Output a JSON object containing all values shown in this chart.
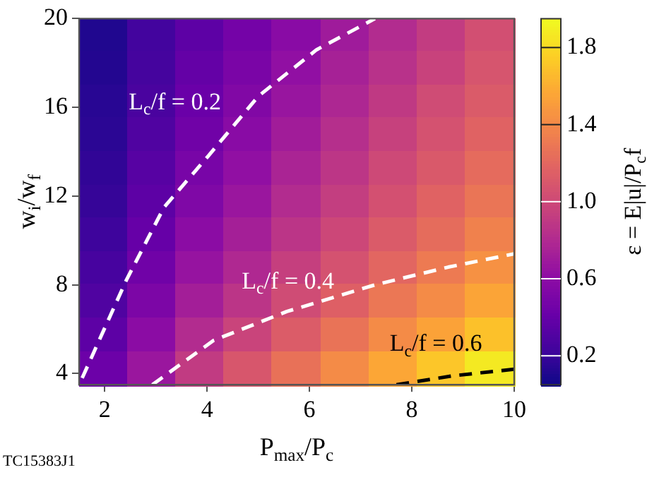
{
  "chart_data": {
    "type": "heatmap",
    "xlabel": "P$_{max}$/P$_{c}$",
    "ylabel": "w$_{i}$/w$_{f}$",
    "clabel": "ε = E|u|/P$_{c}$f",
    "x": [
      1.97,
      2.92,
      3.86,
      4.81,
      5.75,
      6.69,
      7.64,
      8.58,
      9.53
    ],
    "y": [
      19.25,
      17.75,
      16.25,
      14.75,
      13.25,
      11.75,
      10.25,
      8.75,
      7.25,
      5.75,
      4.25
    ],
    "cells": [
      [
        0.12,
        0.25,
        0.37,
        0.48,
        0.59,
        0.71,
        0.82,
        0.93,
        1.05
      ],
      [
        0.13,
        0.26,
        0.4,
        0.51,
        0.63,
        0.75,
        0.86,
        0.97,
        1.09
      ],
      [
        0.15,
        0.28,
        0.43,
        0.55,
        0.67,
        0.79,
        0.91,
        1.03,
        1.13
      ],
      [
        0.16,
        0.31,
        0.46,
        0.59,
        0.72,
        0.84,
        0.96,
        1.07,
        1.18
      ],
      [
        0.18,
        0.34,
        0.5,
        0.63,
        0.77,
        0.89,
        1.01,
        1.12,
        1.23
      ],
      [
        0.2,
        0.37,
        0.54,
        0.68,
        0.82,
        0.94,
        1.06,
        1.18,
        1.29
      ],
      [
        0.23,
        0.41,
        0.6,
        0.74,
        0.88,
        1.0,
        1.13,
        1.24,
        1.36
      ],
      [
        0.27,
        0.46,
        0.66,
        0.8,
        0.95,
        1.07,
        1.2,
        1.32,
        1.45
      ],
      [
        0.31,
        0.52,
        0.73,
        0.88,
        1.03,
        1.16,
        1.3,
        1.42,
        1.56
      ],
      [
        0.37,
        0.6,
        0.82,
        0.98,
        1.14,
        1.28,
        1.42,
        1.55,
        1.7
      ],
      [
        0.44,
        0.68,
        0.92,
        1.1,
        1.27,
        1.42,
        1.57,
        1.72,
        1.88
      ]
    ],
    "clim": [
      0.05,
      1.95
    ],
    "cticks": [
      0.2,
      0.6,
      {
        "value": 1,
        "label": "1.0"
      },
      1.4,
      1.8
    ],
    "xlim": [
      1.5,
      10
    ],
    "xticks": [
      2,
      4,
      6,
      8,
      10
    ],
    "ylim": [
      3.5,
      20
    ],
    "yticks": [
      4,
      8,
      12,
      16,
      20
    ],
    "grid": false,
    "legend": false,
    "series": [
      {
        "type": "line",
        "color": "#ffffff",
        "line_style": "dashed",
        "x": [
          1.56,
          2.42,
          3.16,
          4.02,
          5.0,
          6.14,
          7.28
        ],
        "values": [
          3.8,
          8.2,
          11.5,
          13.8,
          16.5,
          18.6,
          20
        ]
      },
      {
        "type": "line",
        "color": "#ffffff",
        "line_style": "dashed",
        "x": [
          2.93,
          4.13,
          5.56,
          7.28,
          8.71,
          10
        ],
        "values": [
          3.5,
          5.5,
          6.8,
          8.0,
          8.8,
          9.4
        ]
      },
      {
        "type": "line",
        "color": "#000000",
        "line_style": "dashed",
        "x": [
          7.7,
          8.8,
          10
        ],
        "values": [
          3.5,
          3.9,
          4.2
        ]
      }
    ],
    "annotations": [
      "L$_{c}$/f = 0.2",
      "L$_{c}$/f = 0.4",
      "L$_{c}$/f = 0.6",
      "TC15383J1"
    ]
  }
}
